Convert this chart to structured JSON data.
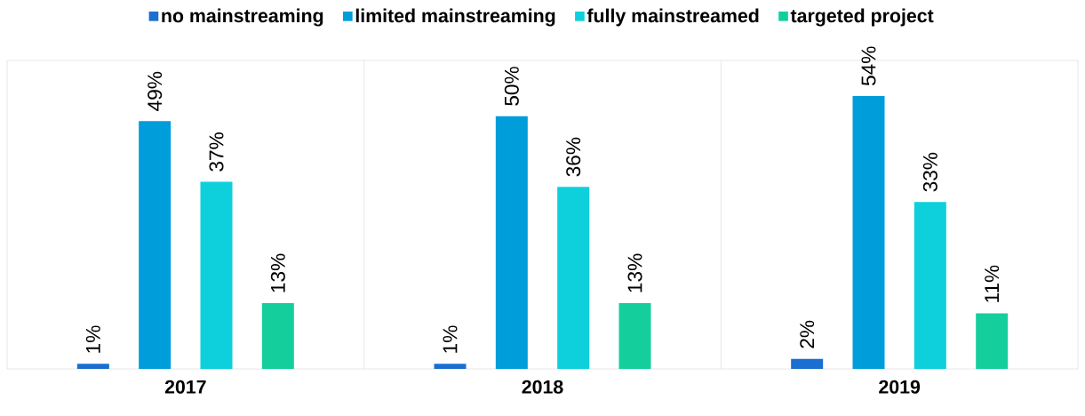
{
  "chart_data": {
    "type": "bar",
    "categories": [
      "2017",
      "2018",
      "2019"
    ],
    "series": [
      {
        "name": "no mainstreaming",
        "color": "#1a6fd0",
        "values": [
          1,
          1,
          2
        ],
        "value_labels": [
          "1%",
          "1%",
          "2%"
        ]
      },
      {
        "name": "limited mainstreaming",
        "color": "#009ddb",
        "values": [
          49,
          50,
          54
        ],
        "value_labels": [
          "49%",
          "50%",
          "54%"
        ]
      },
      {
        "name": "fully mainstreamed",
        "color": "#0dd0dc",
        "values": [
          37,
          36,
          33
        ],
        "value_labels": [
          "37%",
          "36%",
          "33%"
        ]
      },
      {
        "name": "targeted project",
        "color": "#14cf9c",
        "values": [
          13,
          13,
          11
        ],
        "value_labels": [
          "13%",
          "13%",
          "11%"
        ]
      }
    ],
    "legend": "top"
  }
}
